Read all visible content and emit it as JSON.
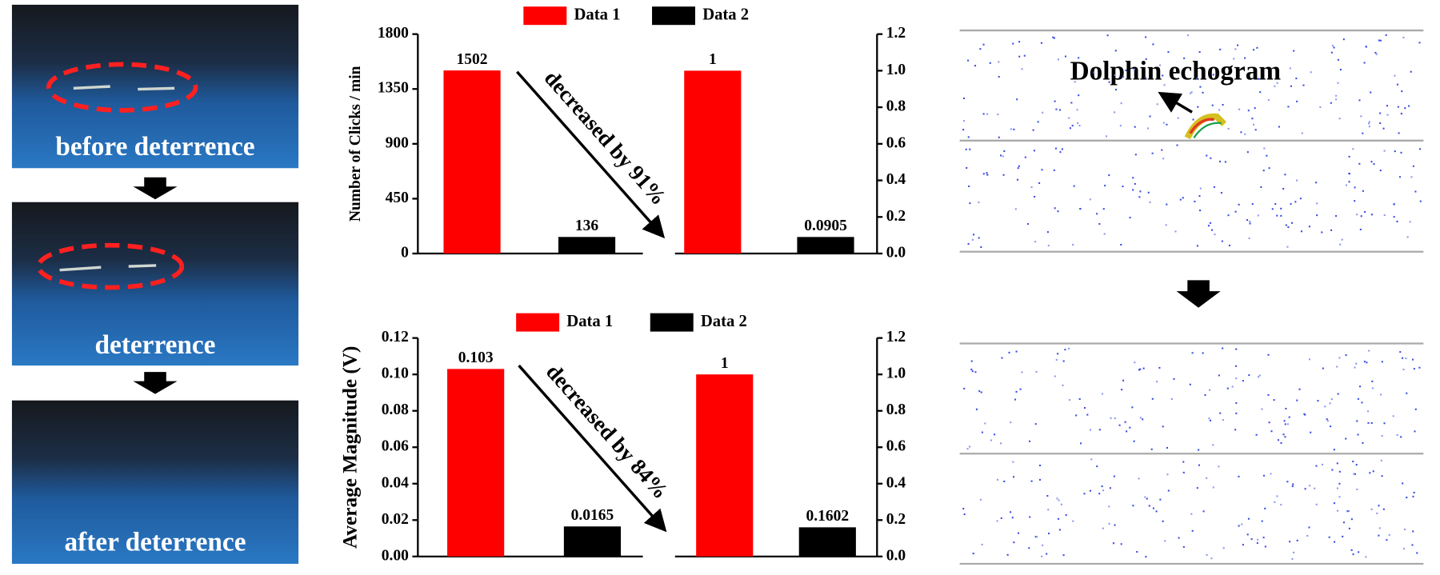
{
  "photos": {
    "labels": [
      "before deterrence",
      "deterrence",
      "after deterrence"
    ]
  },
  "chart_data": [
    {
      "type": "bar",
      "y_label": "Number of Clicks / min",
      "annotation": "decreased by 91%",
      "series": [
        {
          "name": "Data 1",
          "color": "#ff0000",
          "values": [
            1502
          ]
        },
        {
          "name": "Data 2",
          "color": "#000000",
          "values": [
            136
          ]
        }
      ],
      "series_y2": [
        {
          "axis": "y2",
          "color": "#ff0000",
          "values": [
            1
          ]
        },
        {
          "axis": "y2",
          "color": "#000000",
          "values": [
            0.0905
          ]
        }
      ],
      "ylim": [
        0,
        1800
      ],
      "yticks": [
        0,
        450,
        900,
        1350,
        1800
      ],
      "y2lim": [
        0,
        1.2
      ],
      "y2ticks": [
        {
          "value": 0,
          "label": "0.0"
        },
        {
          "value": 0.2,
          "label": "0.2"
        },
        {
          "value": 0.4,
          "label": "0.4"
        },
        {
          "value": 0.6,
          "label": "0.6"
        },
        {
          "value": 0.8,
          "label": "0.8"
        },
        {
          "value": 1,
          "label": "1.0"
        },
        {
          "value": 1.2,
          "label": "1.2"
        }
      ]
    },
    {
      "type": "bar",
      "y_label": "Average Magnitude (V)",
      "annotation": "decreased by 84%",
      "series": [
        {
          "name": "Data 1",
          "color": "#ff0000",
          "values": [
            0.103
          ]
        },
        {
          "name": "Data 2",
          "color": "#000000",
          "values": [
            0.0165
          ]
        }
      ],
      "series_y2": [
        {
          "axis": "y2",
          "color": "#ff0000",
          "values": [
            1
          ]
        },
        {
          "axis": "y2",
          "color": "#000000",
          "values": [
            0.1602
          ]
        }
      ],
      "ylim": [
        0,
        0.12
      ],
      "yticks": [
        {
          "value": 0,
          "label": "0.00"
        },
        {
          "value": 0.02,
          "label": "0.02"
        },
        {
          "value": 0.04,
          "label": "0.04"
        },
        {
          "value": 0.06,
          "label": "0.06"
        },
        {
          "value": 0.08,
          "label": "0.08"
        },
        {
          "value": 0.1,
          "label": "0.10"
        },
        {
          "value": 0.12,
          "label": "0.12"
        }
      ],
      "y2lim": [
        0,
        1.2
      ],
      "y2ticks": [
        {
          "value": 0,
          "label": "0.0"
        },
        {
          "value": 0.2,
          "label": "0.2"
        },
        {
          "value": 0.4,
          "label": "0.4"
        },
        {
          "value": 0.6,
          "label": "0.6"
        },
        {
          "value": 0.8,
          "label": "0.8"
        },
        {
          "value": 1,
          "label": "1.0"
        },
        {
          "value": 1.2,
          "label": "1.2"
        }
      ]
    }
  ],
  "echogram": {
    "label": "Dolphin echogram"
  }
}
